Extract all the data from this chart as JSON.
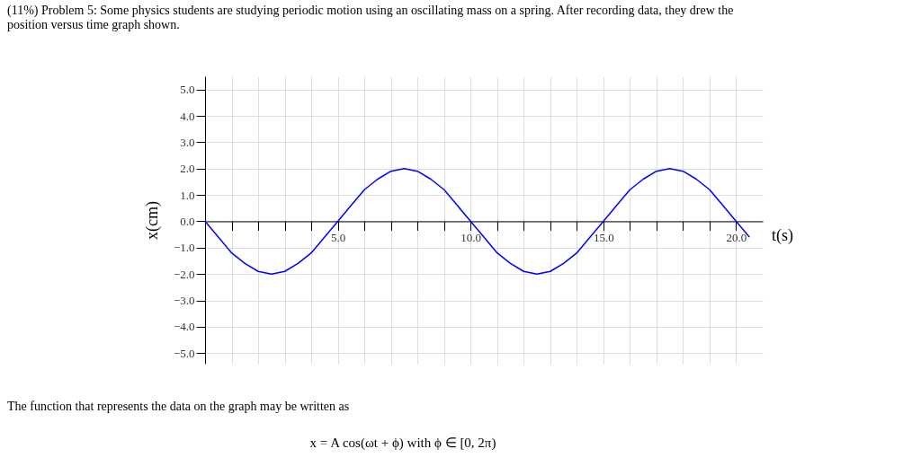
{
  "chart_data": {
    "type": "line",
    "title": "(11%) Problem 5: Some physics students are studying periodic motion using an oscillating mass on a spring. After recording data, they drew the position versus time graph shown.",
    "xlabel": "t(s)",
    "ylabel": "x(cm)",
    "x": [
      0,
      0.5,
      1,
      1.5,
      2,
      2.5,
      3,
      3.5,
      4,
      4.5,
      5,
      5.5,
      6,
      6.5,
      7,
      7.5,
      8,
      8.5,
      9,
      9.5,
      10,
      10.5,
      11,
      11.5,
      12,
      12.5,
      13,
      13.5,
      14,
      14.5,
      15,
      15.5,
      16,
      16.5,
      17,
      17.5,
      18,
      18.5,
      19,
      19.5,
      20,
      20.5
    ],
    "series": [
      {
        "color": "#0000ff",
        "values": [
          0,
          -0.6,
          -1.2,
          -1.6,
          -1.9,
          -2.0,
          -1.9,
          -1.6,
          -1.2,
          -0.6,
          0,
          0.6,
          1.2,
          1.6,
          1.9,
          2.0,
          1.9,
          1.6,
          1.2,
          0.6,
          0,
          -0.6,
          -1.2,
          -1.6,
          -1.9,
          -2.0,
          -1.9,
          -1.6,
          -1.2,
          -0.6,
          0,
          0.6,
          1.2,
          1.6,
          1.9,
          2.0,
          1.9,
          1.6,
          1.2,
          0.6,
          0,
          -0.6
        ]
      }
    ],
    "xlim": [
      0,
      21
    ],
    "ylim": [
      -5.4,
      5.5
    ],
    "xticks": [
      {
        "value": 1,
        "label": null
      },
      {
        "value": 2,
        "label": null
      },
      {
        "value": 3,
        "label": null
      },
      {
        "value": 4,
        "label": null
      },
      {
        "value": 5,
        "label": "5.0"
      },
      {
        "value": 6,
        "label": null
      },
      {
        "value": 7,
        "label": null
      },
      {
        "value": 8,
        "label": null
      },
      {
        "value": 9,
        "label": null
      },
      {
        "value": 10,
        "label": "10.0"
      },
      {
        "value": 11,
        "label": null
      },
      {
        "value": 12,
        "label": null
      },
      {
        "value": 13,
        "label": null
      },
      {
        "value": 14,
        "label": null
      },
      {
        "value": 15,
        "label": "15.0"
      },
      {
        "value": 16,
        "label": null
      },
      {
        "value": 17,
        "label": null
      },
      {
        "value": 18,
        "label": null
      },
      {
        "value": 19,
        "label": null
      },
      {
        "value": 20,
        "label": "20.0"
      }
    ],
    "yticks": [
      {
        "value": -5,
        "label": "−5.0"
      },
      {
        "value": -4,
        "label": "−4.0"
      },
      {
        "value": -3,
        "label": "−3.0"
      },
      {
        "value": -2,
        "label": "−2.0"
      },
      {
        "value": -1,
        "label": "−1.0"
      },
      {
        "value": 0,
        "label": "0.0"
      },
      {
        "value": 1,
        "label": "1.0"
      },
      {
        "value": 2,
        "label": "2.0"
      },
      {
        "value": 3,
        "label": "3.0"
      },
      {
        "value": 4,
        "label": "4.0"
      },
      {
        "value": 5,
        "label": "5.0"
      }
    ],
    "grid": true,
    "line_style": "solid",
    "marker": "none",
    "annotations": [
      "The function that represents the data on the graph may be written as",
      "x = A cos(ωt + ϕ)   with   ϕ ∈ [0, 2π)"
    ]
  }
}
